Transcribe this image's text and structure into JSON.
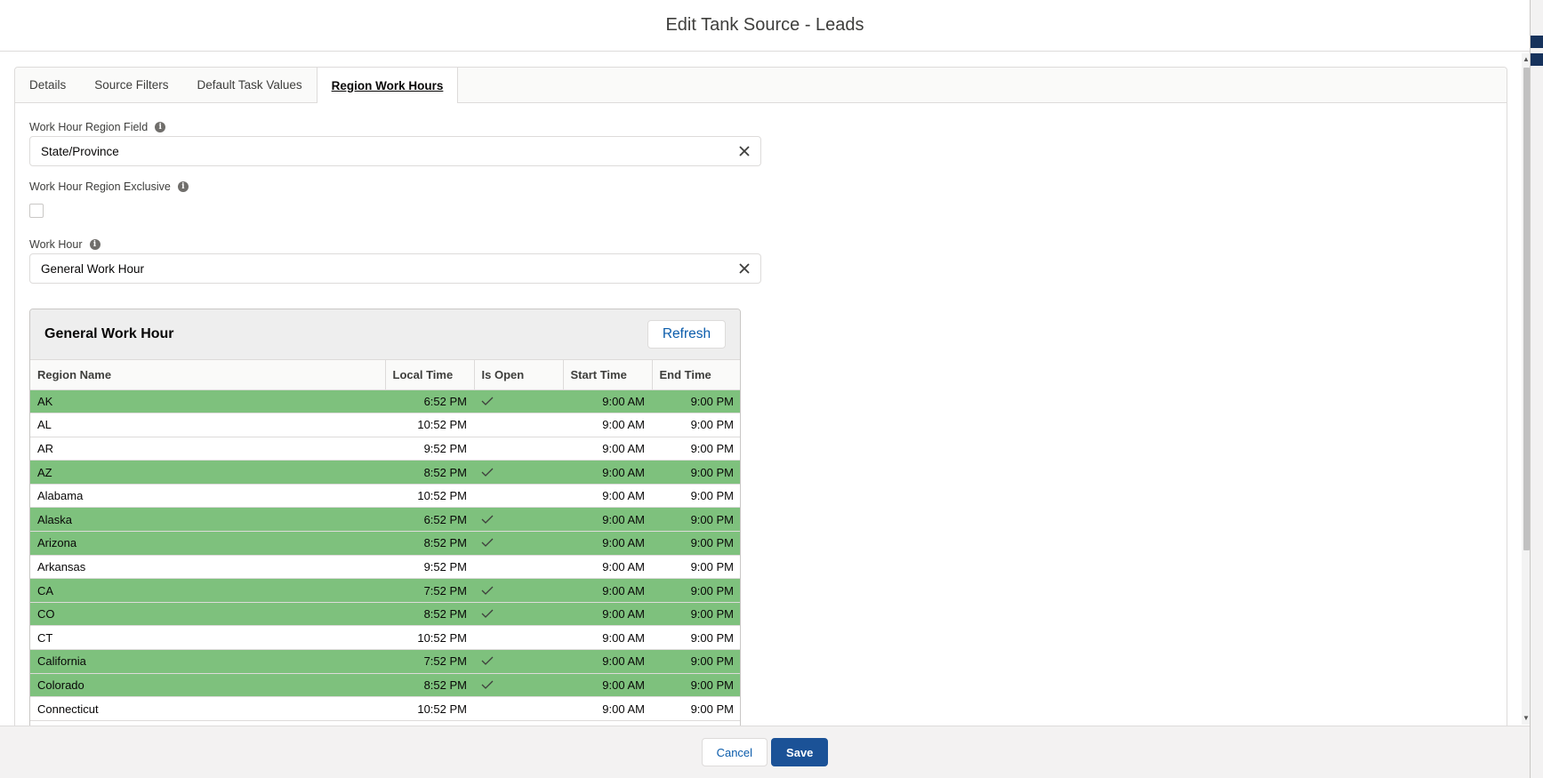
{
  "modal": {
    "title": "Edit Tank Source - Leads"
  },
  "tabs": [
    {
      "label": "Details"
    },
    {
      "label": "Source Filters"
    },
    {
      "label": "Default Task Values"
    },
    {
      "label": "Region Work Hours",
      "active": true
    }
  ],
  "form": {
    "region_field": {
      "label": "Work Hour Region Field",
      "value": "State/Province"
    },
    "region_exclusive": {
      "label": "Work Hour Region Exclusive",
      "checked": false
    },
    "work_hour": {
      "label": "Work Hour",
      "value": "General Work Hour"
    }
  },
  "work_hour_card": {
    "title": "General Work Hour",
    "refresh_label": "Refresh",
    "columns": [
      "Region Name",
      "Local Time",
      "Is Open",
      "Start Time",
      "End Time"
    ],
    "rows": [
      {
        "region": "AK",
        "local": "6:52 PM",
        "open": true,
        "start": "9:00 AM",
        "end": "9:00 PM"
      },
      {
        "region": "AL",
        "local": "10:52 PM",
        "open": false,
        "start": "9:00 AM",
        "end": "9:00 PM"
      },
      {
        "region": "AR",
        "local": "9:52 PM",
        "open": false,
        "start": "9:00 AM",
        "end": "9:00 PM"
      },
      {
        "region": "AZ",
        "local": "8:52 PM",
        "open": true,
        "start": "9:00 AM",
        "end": "9:00 PM"
      },
      {
        "region": "Alabama",
        "local": "10:52 PM",
        "open": false,
        "start": "9:00 AM",
        "end": "9:00 PM"
      },
      {
        "region": "Alaska",
        "local": "6:52 PM",
        "open": true,
        "start": "9:00 AM",
        "end": "9:00 PM"
      },
      {
        "region": "Arizona",
        "local": "8:52 PM",
        "open": true,
        "start": "9:00 AM",
        "end": "9:00 PM"
      },
      {
        "region": "Arkansas",
        "local": "9:52 PM",
        "open": false,
        "start": "9:00 AM",
        "end": "9:00 PM"
      },
      {
        "region": "CA",
        "local": "7:52 PM",
        "open": true,
        "start": "9:00 AM",
        "end": "9:00 PM"
      },
      {
        "region": "CO",
        "local": "8:52 PM",
        "open": true,
        "start": "9:00 AM",
        "end": "9:00 PM"
      },
      {
        "region": "CT",
        "local": "10:52 PM",
        "open": false,
        "start": "9:00 AM",
        "end": "9:00 PM"
      },
      {
        "region": "California",
        "local": "7:52 PM",
        "open": true,
        "start": "9:00 AM",
        "end": "9:00 PM"
      },
      {
        "region": "Colorado",
        "local": "8:52 PM",
        "open": true,
        "start": "9:00 AM",
        "end": "9:00 PM"
      },
      {
        "region": "Connecticut",
        "local": "10:52 PM",
        "open": false,
        "start": "9:00 AM",
        "end": "9:00 PM"
      }
    ]
  },
  "footer": {
    "cancel_label": "Cancel",
    "save_label": "Save"
  },
  "colors": {
    "open_row": "#7ec17d",
    "brand": "#1b5297",
    "link": "#0b5cab"
  },
  "icons": {
    "clear": "close-icon",
    "info": "info-icon",
    "check": "checkmark-icon"
  }
}
